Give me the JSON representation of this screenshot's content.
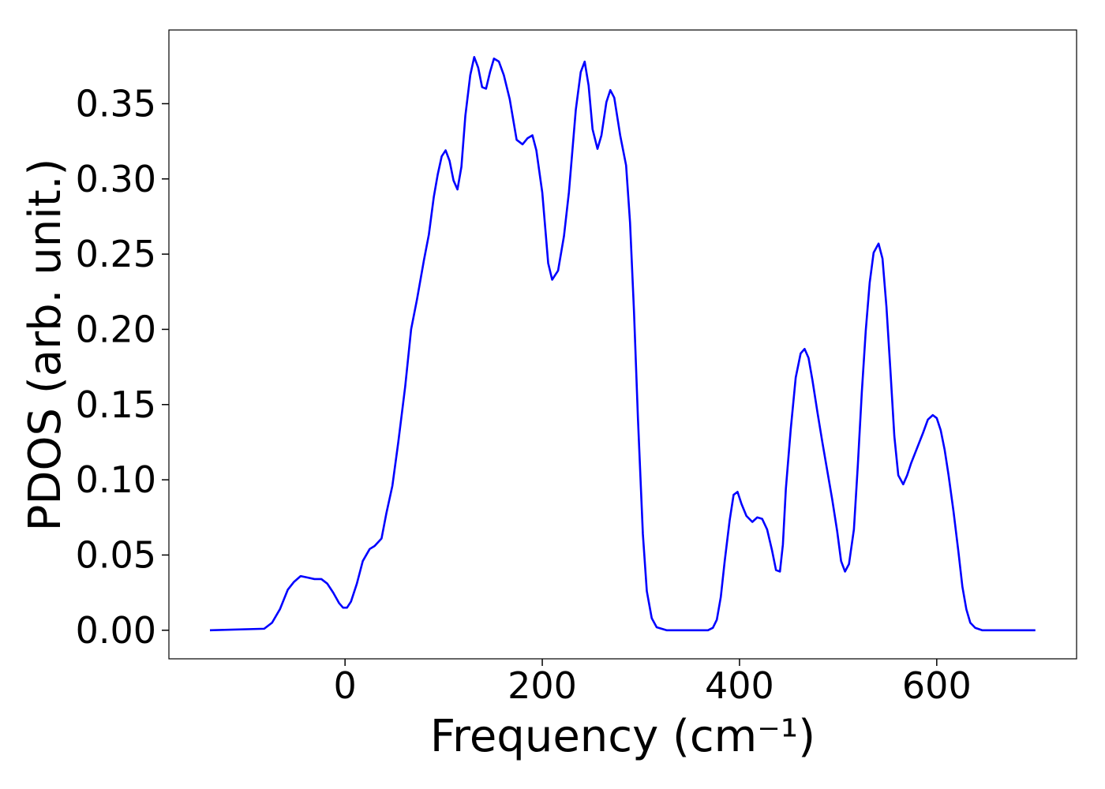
{
  "chart_data": {
    "type": "line",
    "xlabel": "Frequency (cm⁻¹)",
    "ylabel": "PDOS (arb. unit.)",
    "xlim": [
      -178.6,
      741.8
    ],
    "ylim": [
      -0.019,
      0.399
    ],
    "xticks": [
      0,
      200,
      400,
      600
    ],
    "yticks": [
      {
        "value": 0,
        "label": "0.00"
      },
      {
        "value": 0.05,
        "label": "0.05"
      },
      {
        "value": 0.1,
        "label": "0.10"
      },
      {
        "value": 0.15,
        "label": "0.15"
      },
      {
        "value": 0.2,
        "label": "0.20"
      },
      {
        "value": 0.25,
        "label": "0.25"
      },
      {
        "value": 0.3,
        "label": "0.30"
      },
      {
        "value": 0.35,
        "label": "0.35"
      }
    ],
    "grid": false,
    "series": [
      {
        "color": "#0000ff",
        "x": [
          -137,
          -82,
          -74,
          -66,
          -58,
          -52,
          -45,
          -38,
          -31,
          -24,
          -18,
          -12,
          -6,
          -2,
          2,
          6,
          12,
          18,
          25,
          30,
          37,
          42,
          48,
          54,
          61,
          67,
          73,
          80,
          85,
          90,
          94,
          98,
          102,
          106,
          110,
          114,
          118,
          122,
          127,
          131,
          135,
          139,
          143,
          147,
          151,
          156,
          161,
          167,
          174,
          180,
          185,
          190,
          194,
          200,
          206,
          210,
          216,
          222,
          227,
          234,
          239,
          243,
          247,
          251,
          256,
          260,
          265,
          269,
          273,
          279,
          285,
          289,
          293,
          297,
          302,
          306,
          311,
          316,
          326,
          368,
          373,
          377,
          381,
          385,
          390,
          394,
          398,
          402,
          407,
          413,
          418,
          423,
          428,
          433,
          437,
          441,
          444,
          447,
          452,
          457,
          462,
          466,
          470,
          474,
          479,
          484,
          489,
          494,
          499,
          503,
          507,
          511,
          516,
          520,
          524,
          528,
          532,
          536,
          541,
          545,
          549,
          553,
          557,
          561,
          566,
          570,
          574,
          580,
          586,
          591,
          596,
          600,
          604,
          608,
          612,
          617,
          622,
          626,
          630,
          634,
          639,
          646,
          700
        ],
        "values": [
          0,
          0.001,
          0.005,
          0.014,
          0.027,
          0.032,
          0.036,
          0.035,
          0.034,
          0.034,
          0.031,
          0.025,
          0.018,
          0.015,
          0.015,
          0.019,
          0.031,
          0.046,
          0.054,
          0.056,
          0.061,
          0.078,
          0.096,
          0.125,
          0.162,
          0.2,
          0.22,
          0.246,
          0.263,
          0.288,
          0.303,
          0.315,
          0.319,
          0.312,
          0.299,
          0.293,
          0.308,
          0.342,
          0.369,
          0.381,
          0.374,
          0.361,
          0.36,
          0.371,
          0.38,
          0.378,
          0.369,
          0.353,
          0.326,
          0.323,
          0.327,
          0.329,
          0.319,
          0.291,
          0.244,
          0.233,
          0.239,
          0.262,
          0.291,
          0.346,
          0.371,
          0.378,
          0.362,
          0.333,
          0.32,
          0.329,
          0.351,
          0.359,
          0.354,
          0.329,
          0.309,
          0.271,
          0.212,
          0.141,
          0.064,
          0.026,
          0.008,
          0.002,
          0,
          0,
          0.0016,
          0.007,
          0.022,
          0.046,
          0.073,
          0.09,
          0.092,
          0.084,
          0.076,
          0.072,
          0.075,
          0.074,
          0.067,
          0.053,
          0.04,
          0.039,
          0.057,
          0.094,
          0.134,
          0.168,
          0.184,
          0.187,
          0.181,
          0.166,
          0.145,
          0.125,
          0.106,
          0.087,
          0.066,
          0.046,
          0.039,
          0.044,
          0.067,
          0.11,
          0.158,
          0.199,
          0.231,
          0.251,
          0.257,
          0.247,
          0.215,
          0.173,
          0.129,
          0.103,
          0.097,
          0.103,
          0.111,
          0.121,
          0.131,
          0.14,
          0.143,
          0.141,
          0.133,
          0.12,
          0.103,
          0.079,
          0.052,
          0.029,
          0.014,
          0.005,
          0.0016,
          0,
          0
        ]
      }
    ]
  }
}
